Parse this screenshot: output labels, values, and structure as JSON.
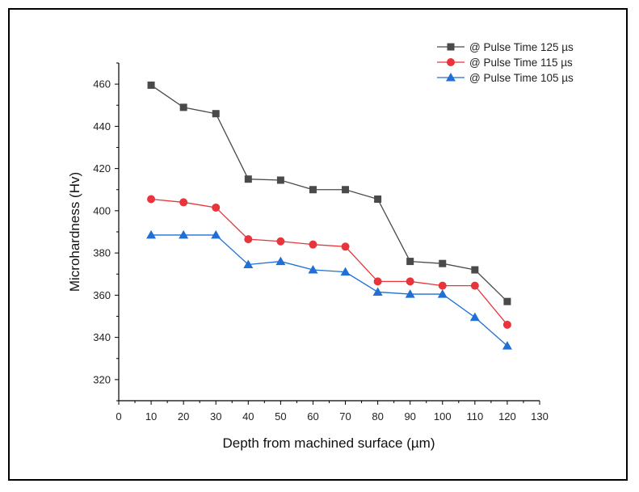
{
  "chart_data": {
    "type": "line",
    "title": "",
    "xlabel": "Depth from machined surface (µm)",
    "ylabel": "Microhardness (Hv)",
    "xlim": [
      0,
      130
    ],
    "ylim": [
      310,
      470
    ],
    "xticks": [
      0,
      10,
      20,
      30,
      40,
      50,
      60,
      70,
      80,
      90,
      100,
      110,
      120,
      130
    ],
    "yticks": [
      320,
      340,
      360,
      380,
      400,
      420,
      440,
      460
    ],
    "legend_position": "top-right",
    "x": [
      10,
      20,
      30,
      40,
      50,
      60,
      70,
      80,
      90,
      100,
      110,
      120
    ],
    "series": [
      {
        "name": "@ Pulse Time 125 µs",
        "color": "#4a4a4a",
        "marker": "square",
        "values": [
          459.5,
          449,
          446,
          415,
          414.5,
          410,
          410,
          405.5,
          376,
          375,
          372,
          357
        ]
      },
      {
        "name": "@ Pulse Time 115 µs",
        "color": "#e8343a",
        "marker": "circle",
        "values": [
          405.5,
          404,
          401.5,
          386.5,
          385.5,
          384,
          383,
          366.5,
          366.5,
          364.5,
          364.5,
          346
        ]
      },
      {
        "name": "@ Pulse Time 105 µs",
        "color": "#1f6fd6",
        "marker": "triangle",
        "values": [
          388.5,
          388.5,
          388.5,
          374.5,
          376,
          372,
          371,
          361.5,
          360.5,
          360.5,
          349.5,
          336
        ]
      }
    ]
  }
}
